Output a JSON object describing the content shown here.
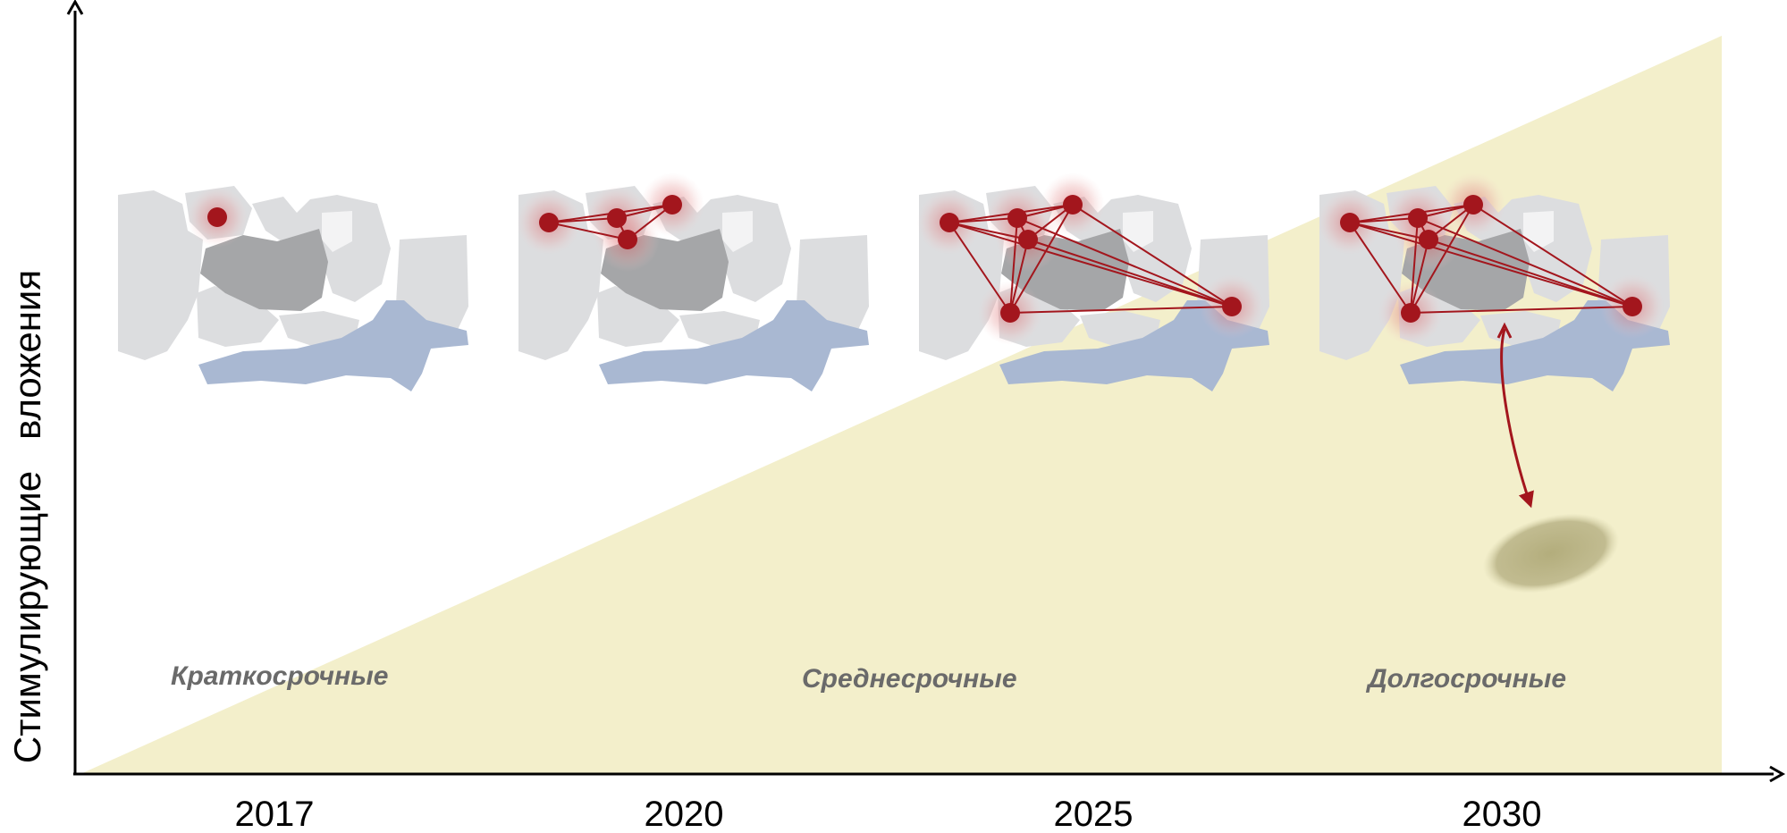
{
  "y_axis_label": "Стимулирующие   вложения",
  "x_axis": {
    "years": [
      "2017",
      "2020",
      "2025",
      "2030"
    ]
  },
  "phases": [
    "Краткосрочные",
    "Среднесрочные",
    "Долгосрочные"
  ],
  "stages": [
    {
      "year": "2017",
      "node_count": 1
    },
    {
      "year": "2020",
      "node_count": 4
    },
    {
      "year": "2025",
      "node_count": 6
    },
    {
      "year": "2030",
      "node_count": 6
    }
  ],
  "colors": {
    "wedge": "#f3efcb",
    "node": "#a3161d",
    "glow": "#e79a9a",
    "map_light": "#dcdddf",
    "map_dark": "#a5a6a8",
    "water": "#a9b8d2",
    "shadow": "#b8b383"
  }
}
